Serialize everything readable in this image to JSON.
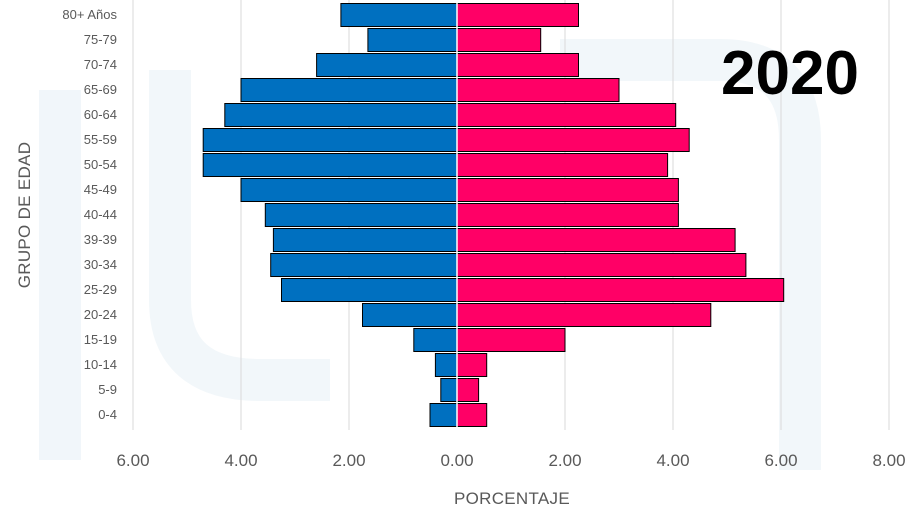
{
  "chart_data": {
    "type": "bar",
    "orientation": "horizontal",
    "layout": "population-pyramid",
    "title": "2020",
    "xlabel": "PORCENTAJE",
    "ylabel": "GRUPO DE EDAD",
    "categories": [
      "0-4",
      "5-9",
      "10-14",
      "15-19",
      "20-24",
      "25-29",
      "30-34",
      "39-39",
      "40-44",
      "45-49",
      "50-54",
      "55-59",
      "60-64",
      "65-69",
      "70-74",
      "75-79",
      "80+ Años"
    ],
    "series": [
      {
        "values": [
          0.5,
          0.3,
          0.4,
          0.8,
          1.75,
          3.25,
          3.45,
          3.4,
          3.55,
          4.0,
          4.7,
          4.7,
          4.3,
          4.0,
          2.6,
          1.65,
          2.15
        ]
      },
      {
        "values": [
          0.55,
          0.4,
          0.55,
          2.0,
          4.7,
          6.05,
          5.35,
          5.15,
          4.1,
          4.1,
          3.9,
          4.3,
          4.05,
          3.0,
          2.25,
          1.55,
          2.25
        ]
      }
    ],
    "xlim": [
      -6,
      8
    ],
    "x_ticks": [
      "6.00",
      "4.00",
      "2.00",
      "0.00",
      "2.00",
      "4.00",
      "6.00",
      "8.00"
    ],
    "grid": true,
    "colors": {
      "left": "#0070c0",
      "right": "#ff0066",
      "grid": "#d9d9d9",
      "bar_outline": "#000000"
    }
  }
}
